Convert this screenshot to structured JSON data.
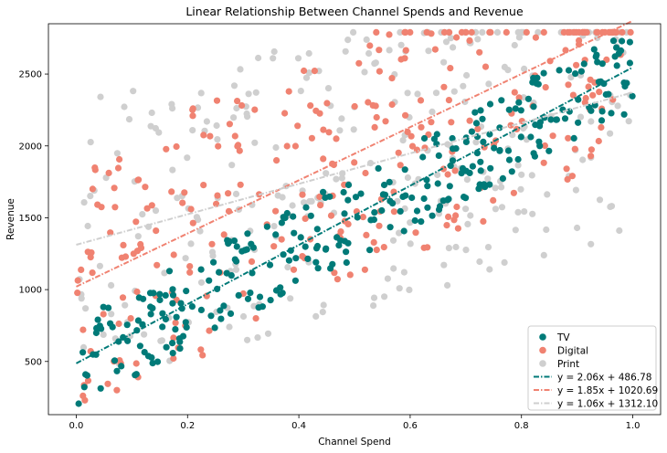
{
  "chart_data": {
    "type": "scatter",
    "title": "Linear Relationship Between Channel Spends and Revenue",
    "xlabel": "Channel Spend",
    "ylabel": "Revenue",
    "xlim": [
      -0.05,
      1.05
    ],
    "ylim": [
      130,
      2850
    ],
    "x_ticks": [
      0.0,
      0.2,
      0.4,
      0.6,
      0.8,
      1.0
    ],
    "x_tick_labels": [
      "0.0",
      "0.2",
      "0.4",
      "0.6",
      "0.8",
      "1.0"
    ],
    "y_ticks": [
      500,
      1000,
      1500,
      2000,
      2500
    ],
    "y_tick_labels": [
      "500",
      "1000",
      "1500",
      "2000",
      "2500"
    ],
    "grid": false,
    "legend_position": "lower-right",
    "point_count_per_series": 300,
    "series": [
      {
        "name": "TV",
        "color": "#007a78",
        "slope": 2.06,
        "intercept": 486.78,
        "noise_spread": 300,
        "fit_label": "y = 2.06x + 486.78"
      },
      {
        "name": "Digital",
        "color": "#f08271",
        "slope": 1.85,
        "intercept": 1020.69,
        "noise_spread": 900,
        "fit_label": "y = 1.85x + 1020.69"
      },
      {
        "name": "Print",
        "color": "#cfcfcf",
        "slope": 1.06,
        "intercept": 1312.1,
        "noise_spread": 1000,
        "fit_label": "y = 1.06x + 1312.10"
      }
    ]
  }
}
